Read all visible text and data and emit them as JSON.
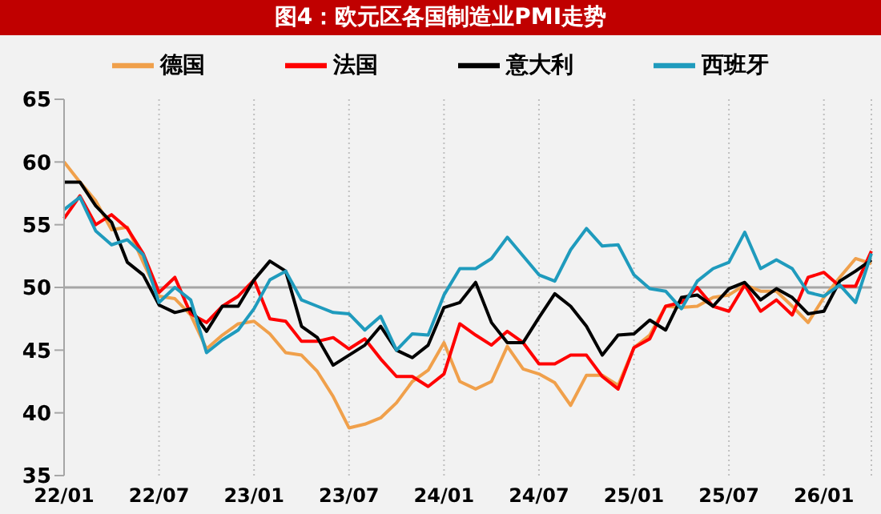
{
  "chart_data": {
    "type": "line",
    "title": "图4：欧元区各国制造业PMI走势",
    "categories": [
      "22/01",
      null,
      null,
      null,
      null,
      null,
      "22/07",
      null,
      null,
      null,
      null,
      null,
      "23/01",
      null,
      null,
      null,
      null,
      null,
      "23/07",
      null,
      null,
      null,
      null,
      null,
      "24/01",
      null,
      null,
      null,
      null,
      null,
      "24/07",
      null,
      null,
      null,
      null,
      null,
      "25/01",
      null,
      null,
      null,
      null,
      null,
      "25/07",
      null,
      null,
      null,
      null,
      null,
      "26/01",
      null,
      null,
      null
    ],
    "series": [
      {
        "name": "德国",
        "color": "#f0a04b",
        "values": [
          60.0,
          58.4,
          56.9,
          54.6,
          54.8,
          52.0,
          49.3,
          49.1,
          47.8,
          45.1,
          46.2,
          47.1,
          47.3,
          46.3,
          44.8,
          44.6,
          43.3,
          41.3,
          38.8,
          39.1,
          39.6,
          40.8,
          42.5,
          43.4,
          45.6,
          42.5,
          41.9,
          42.5,
          45.3,
          43.5,
          43.1,
          42.4,
          40.6,
          43.0,
          43.0,
          42.2,
          45.2,
          46.2,
          48.5,
          48.4,
          48.5,
          49.2,
          49.4,
          50.2,
          49.7,
          49.7,
          48.5,
          47.2,
          49.2,
          50.8,
          52.3,
          51.9
        ]
      },
      {
        "name": "法国",
        "color": "#ff0000",
        "values": [
          55.5,
          57.3,
          55.0,
          55.8,
          54.7,
          52.7,
          49.6,
          50.8,
          47.9,
          47.2,
          48.5,
          49.3,
          50.6,
          47.5,
          47.3,
          45.7,
          45.7,
          46.0,
          45.1,
          45.9,
          44.3,
          42.9,
          42.9,
          42.1,
          43.1,
          47.1,
          46.2,
          45.4,
          46.5,
          45.6,
          43.9,
          43.9,
          44.6,
          44.6,
          42.9,
          41.9,
          45.2,
          45.9,
          48.5,
          48.8,
          50.0,
          48.5,
          48.1,
          50.2,
          48.1,
          49.0,
          47.8,
          50.8,
          51.2,
          50.1,
          50.1,
          52.9
        ]
      },
      {
        "name": "意大利",
        "color": "#000000",
        "values": [
          58.4,
          58.4,
          56.5,
          55.2,
          52.0,
          51.0,
          48.6,
          48.0,
          48.3,
          46.5,
          48.5,
          48.5,
          50.6,
          52.1,
          51.3,
          46.9,
          46.0,
          43.8,
          44.6,
          45.4,
          46.9,
          45.0,
          44.4,
          45.4,
          48.4,
          48.8,
          50.4,
          47.2,
          45.6,
          45.6,
          47.6,
          49.5,
          48.5,
          46.9,
          44.6,
          46.2,
          46.3,
          47.4,
          46.6,
          49.2,
          49.4,
          48.5,
          49.9,
          50.4,
          49.0,
          49.9,
          49.2,
          47.9,
          48.1,
          50.5,
          51.3,
          52.2
        ]
      },
      {
        "name": "西班牙",
        "color": "#1f9bbd",
        "values": [
          56.2,
          57.2,
          54.5,
          53.4,
          53.8,
          52.6,
          48.8,
          50.0,
          49.0,
          44.8,
          45.8,
          46.6,
          48.3,
          50.6,
          51.3,
          49.0,
          48.5,
          48.0,
          47.9,
          46.6,
          47.7,
          45.0,
          46.3,
          46.2,
          49.4,
          51.5,
          51.5,
          52.3,
          54.0,
          52.5,
          51.0,
          50.5,
          53.0,
          54.7,
          53.3,
          53.4,
          51.0,
          49.9,
          49.7,
          48.3,
          50.5,
          51.5,
          52.0,
          54.4,
          51.5,
          52.2,
          51.5,
          49.6,
          49.3,
          50.2,
          48.8,
          52.7
        ]
      }
    ],
    "ylim": [
      35,
      65
    ],
    "yticks": [
      35,
      40,
      45,
      50,
      55,
      60,
      65
    ],
    "ref_lines": [
      {
        "axis": "y",
        "value": 50,
        "color": "#a6a6a6"
      }
    ],
    "grid": "x",
    "legend": "top",
    "marker": "none",
    "line_style": "solid"
  }
}
